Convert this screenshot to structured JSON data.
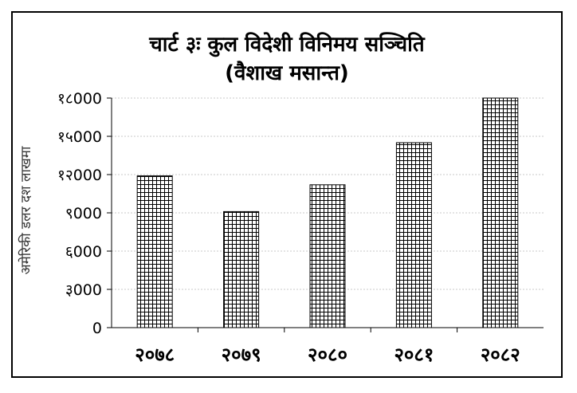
{
  "chart_data": {
    "type": "bar",
    "title": "चार्ट ३ः कुल विदेशी विनिमय सञ्चिति",
    "subtitle": "(वैशाख मसान्त)",
    "xlabel": "",
    "ylabel": "अमेरिकी डलर दश लाखमा",
    "categories": [
      "२०७८",
      "२०७९",
      "२०८०",
      "२०८१",
      "२०८२"
    ],
    "values": [
      11900,
      9100,
      11200,
      14500,
      18000
    ],
    "ylim": [
      0,
      18000
    ],
    "yticks": [
      0,
      3000,
      6000,
      9000,
      12000,
      15000,
      18000
    ],
    "ytick_labels": [
      "0",
      "३000",
      "६000",
      "९000",
      "१२000",
      "१५000",
      "१८000"
    ],
    "grid": true,
    "legend": "none",
    "bar_pattern": "crosshatch"
  },
  "colors": {
    "bar_fill": "#ffffff",
    "bar_hatch": "#000000",
    "grid": "#c8c8c8",
    "axis": "#000000",
    "text": "#000000"
  }
}
